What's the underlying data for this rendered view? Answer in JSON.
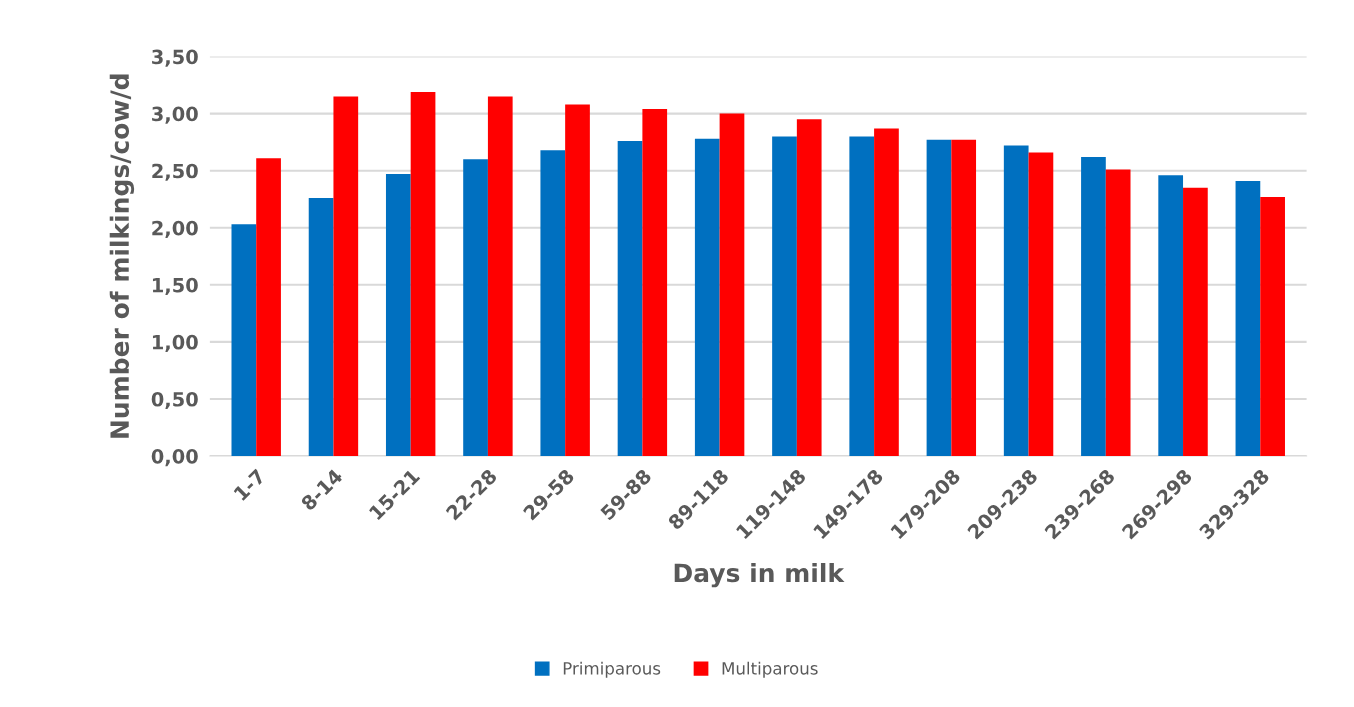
{
  "chart_data": {
    "type": "bar",
    "xlabel": "Days in milk",
    "ylabel": "Number of milkings/cow/d",
    "categories": [
      "1-7",
      "8-14",
      "15-21",
      "22-28",
      "29-58",
      "59-88",
      "89-118",
      "119-148",
      "149-178",
      "179-208",
      "209-238",
      "239-268",
      "269-298",
      "329-328"
    ],
    "series": [
      {
        "name": "Primiparous",
        "color": "#0070c0",
        "values": [
          2.03,
          2.26,
          2.47,
          2.6,
          2.68,
          2.76,
          2.78,
          2.8,
          2.8,
          2.77,
          2.72,
          2.62,
          2.46,
          2.41
        ]
      },
      {
        "name": "Multiparous",
        "color": "#ff0000",
        "values": [
          2.61,
          3.15,
          3.19,
          3.15,
          3.08,
          3.04,
          3.0,
          2.95,
          2.87,
          2.77,
          2.66,
          2.51,
          2.35,
          2.27
        ]
      }
    ],
    "ylim": [
      0,
      3.5
    ],
    "yticks": [
      {
        "value": 0,
        "label": "0,00"
      },
      {
        "value": 0.5,
        "label": "0,50"
      },
      {
        "value": 1,
        "label": "1,00"
      },
      {
        "value": 1.5,
        "label": "1,50"
      },
      {
        "value": 2,
        "label": "2,00"
      },
      {
        "value": 2.5,
        "label": "2,50"
      },
      {
        "value": 3,
        "label": "3,00"
      },
      {
        "value": 3.5,
        "label": "3,50"
      }
    ],
    "grid": "y",
    "legend": "bottom"
  }
}
